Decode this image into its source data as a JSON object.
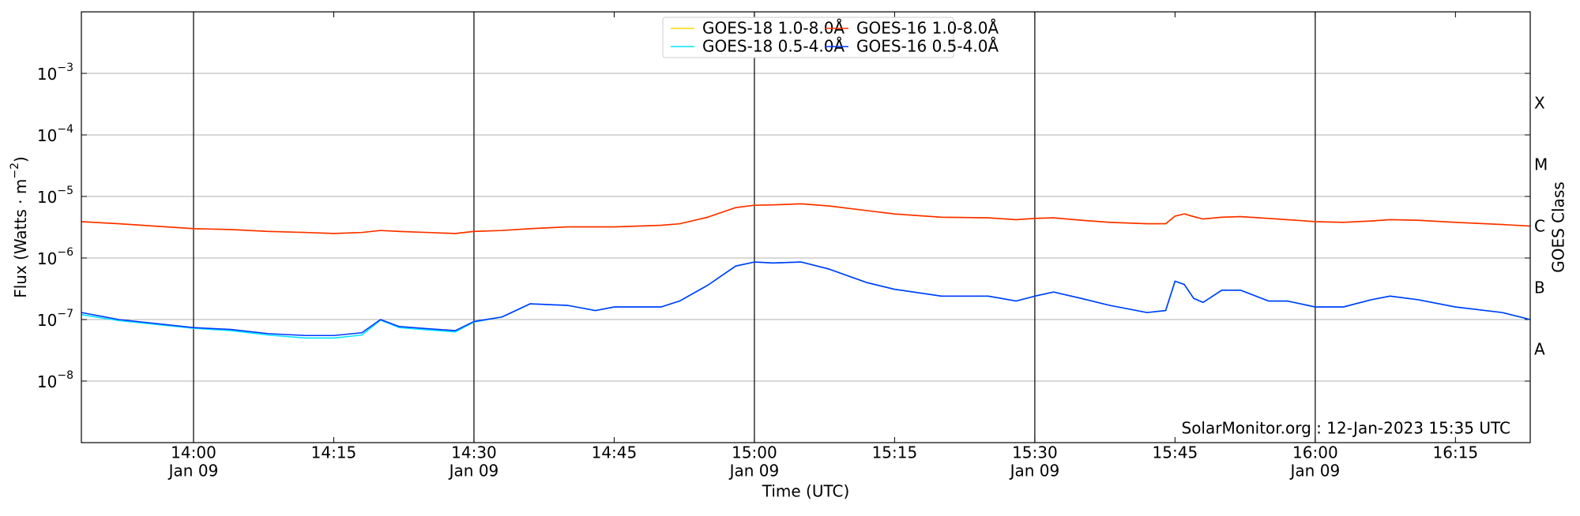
{
  "chart_data": {
    "type": "line",
    "ylabel": [
      "Flux (Watts · m",
      "−2",
      ")"
    ],
    "xlabel": "Time (UTC)",
    "y2label": "GOES Class",
    "classes": [
      "A",
      "B",
      "C",
      "M",
      "X"
    ],
    "annotation": "SolarMonitor.org : 12-Jan-2023 15:35 UTC",
    "log_y": true,
    "grid": true,
    "legend": "upper center",
    "xlim": [
      "13:48",
      "16:23"
    ],
    "xticks": [
      {
        "value": "14:00",
        "label": [
          "14:00",
          "Jan 09"
        ]
      },
      "14:15",
      {
        "value": "14:30",
        "label": [
          "14:30",
          "Jan 09"
        ]
      },
      "14:45",
      {
        "value": "15:00",
        "label": [
          "15:00",
          "Jan 09"
        ]
      },
      "15:15",
      {
        "value": "15:30",
        "label": [
          "15:30",
          "Jan 09"
        ]
      },
      "15:45",
      {
        "value": "16:00",
        "label": [
          "16:00",
          "Jan 09"
        ]
      },
      "16:15"
    ],
    "ylim": [
      1e-09,
      0.01
    ],
    "yticks": [
      {
        "value": 1e-08,
        "label": [
          "10",
          "−8"
        ]
      },
      {
        "value": 1e-07,
        "label": [
          "10",
          "−7"
        ]
      },
      {
        "value": 1e-06,
        "label": [
          "10",
          "−6"
        ]
      },
      {
        "value": 1e-05,
        "label": [
          "10",
          "−5"
        ]
      },
      {
        "value": 0.0001,
        "label": [
          "10",
          "−4"
        ]
      },
      {
        "value": 0.001,
        "label": [
          "10",
          "−3"
        ]
      }
    ],
    "x": [
      "13:48",
      "13:52",
      "14:00",
      "14:04",
      "14:08",
      "14:12",
      "14:15",
      "14:18",
      "14:20",
      "14:22",
      "14:25",
      "14:28",
      "14:30",
      "14:33",
      "14:36",
      "14:40",
      "14:43",
      "14:45",
      "14:50",
      "14:52",
      "14:55",
      "14:58",
      "15:00",
      "15:02",
      "15:05",
      "15:08",
      "15:12",
      "15:15",
      "15:20",
      "15:25",
      "15:28",
      "15:30",
      "15:32",
      "15:35",
      "15:38",
      "15:42",
      "15:44",
      "15:45",
      "15:46",
      "15:47",
      "15:48",
      "15:50",
      "15:52",
      "15:55",
      "15:57",
      "16:00",
      "16:03",
      "16:06",
      "16:08",
      "16:11",
      "16:15",
      "16:20",
      "16:23"
    ],
    "series": [
      {
        "name": "GOES-18 1.0-8.0Å",
        "color": "#ffd700",
        "values": [
          3.9e-06,
          3.6e-06,
          3e-06,
          2.9e-06,
          2.7e-06,
          2.6e-06,
          2.5e-06,
          2.6e-06,
          2.8e-06,
          2.7e-06,
          2.6e-06,
          2.5e-06,
          2.7e-06,
          2.8e-06,
          3e-06,
          3.2e-06,
          3.2e-06,
          3.2e-06,
          3.4e-06,
          3.6e-06,
          4.6e-06,
          6.6e-06,
          7.2e-06,
          7.3e-06,
          7.6e-06,
          7e-06,
          5.9e-06,
          5.2e-06,
          4.6e-06,
          4.5e-06,
          4.2e-06,
          4.4e-06,
          4.5e-06,
          4.1e-06,
          3.8e-06,
          3.6e-06,
          3.6e-06,
          4.8e-06,
          5.2e-06,
          4.7e-06,
          4.3e-06,
          4.6e-06,
          4.7e-06,
          4.4e-06,
          4.2e-06,
          3.9e-06,
          3.8e-06,
          4e-06,
          4.2e-06,
          4.1e-06,
          3.8e-06,
          3.5e-06,
          3.3e-06
        ]
      },
      {
        "name": "GOES-18 0.5-4.0Å",
        "color": "#00e5ff",
        "values": [
          1.2e-07,
          9.6e-08,
          7.2e-08,
          6.6e-08,
          5.6e-08,
          5e-08,
          5e-08,
          5.6e-08,
          9.8e-08,
          7.4e-08,
          6.8e-08,
          6.3e-08,
          9.1e-08,
          1.1e-07,
          1.8e-07,
          1.7e-07,
          1.4e-07,
          1.6e-07,
          1.6e-07,
          2e-07,
          3.6e-07,
          7.4e-07,
          8.6e-07,
          8.3e-07,
          8.6e-07,
          6.6e-07,
          4e-07,
          3.1e-07,
          2.4e-07,
          2.4e-07,
          2e-07,
          2.4e-07,
          2.8e-07,
          2.2e-07,
          1.7e-07,
          1.3e-07,
          1.4e-07,
          4.2e-07,
          3.7e-07,
          2.2e-07,
          1.9e-07,
          3e-07,
          3e-07,
          2e-07,
          2e-07,
          1.6e-07,
          1.6e-07,
          2.1e-07,
          2.4e-07,
          2.1e-07,
          1.6e-07,
          1.3e-07,
          1e-07
        ]
      },
      {
        "name": "GOES-16 1.0-8.0Å",
        "color": "#ff2a00",
        "values": [
          3.9e-06,
          3.6e-06,
          3e-06,
          2.9e-06,
          2.7e-06,
          2.6e-06,
          2.5e-06,
          2.6e-06,
          2.8e-06,
          2.7e-06,
          2.6e-06,
          2.5e-06,
          2.7e-06,
          2.8e-06,
          3e-06,
          3.2e-06,
          3.2e-06,
          3.2e-06,
          3.4e-06,
          3.6e-06,
          4.6e-06,
          6.6e-06,
          7.2e-06,
          7.3e-06,
          7.6e-06,
          7e-06,
          5.9e-06,
          5.2e-06,
          4.6e-06,
          4.5e-06,
          4.2e-06,
          4.4e-06,
          4.5e-06,
          4.1e-06,
          3.8e-06,
          3.6e-06,
          3.6e-06,
          4.8e-06,
          5.2e-06,
          4.7e-06,
          4.3e-06,
          4.6e-06,
          4.7e-06,
          4.4e-06,
          4.2e-06,
          3.9e-06,
          3.8e-06,
          4e-06,
          4.2e-06,
          4.1e-06,
          3.8e-06,
          3.5e-06,
          3.3e-06
        ]
      },
      {
        "name": "GOES-16 0.5-4.0Å",
        "color": "#0039ff",
        "values": [
          1.3e-07,
          1e-07,
          7.4e-08,
          6.9e-08,
          5.9e-08,
          5.5e-08,
          5.5e-08,
          6.1e-08,
          1e-07,
          7.7e-08,
          7.1e-08,
          6.6e-08,
          9.3e-08,
          1.1e-07,
          1.8e-07,
          1.7e-07,
          1.4e-07,
          1.6e-07,
          1.6e-07,
          2e-07,
          3.6e-07,
          7.4e-07,
          8.6e-07,
          8.3e-07,
          8.6e-07,
          6.6e-07,
          4e-07,
          3.1e-07,
          2.4e-07,
          2.4e-07,
          2e-07,
          2.4e-07,
          2.8e-07,
          2.2e-07,
          1.7e-07,
          1.3e-07,
          1.4e-07,
          4.2e-07,
          3.7e-07,
          2.2e-07,
          1.9e-07,
          3e-07,
          3e-07,
          2e-07,
          2e-07,
          1.6e-07,
          1.6e-07,
          2.1e-07,
          2.4e-07,
          2.1e-07,
          1.6e-07,
          1.3e-07,
          1e-07
        ]
      }
    ]
  }
}
